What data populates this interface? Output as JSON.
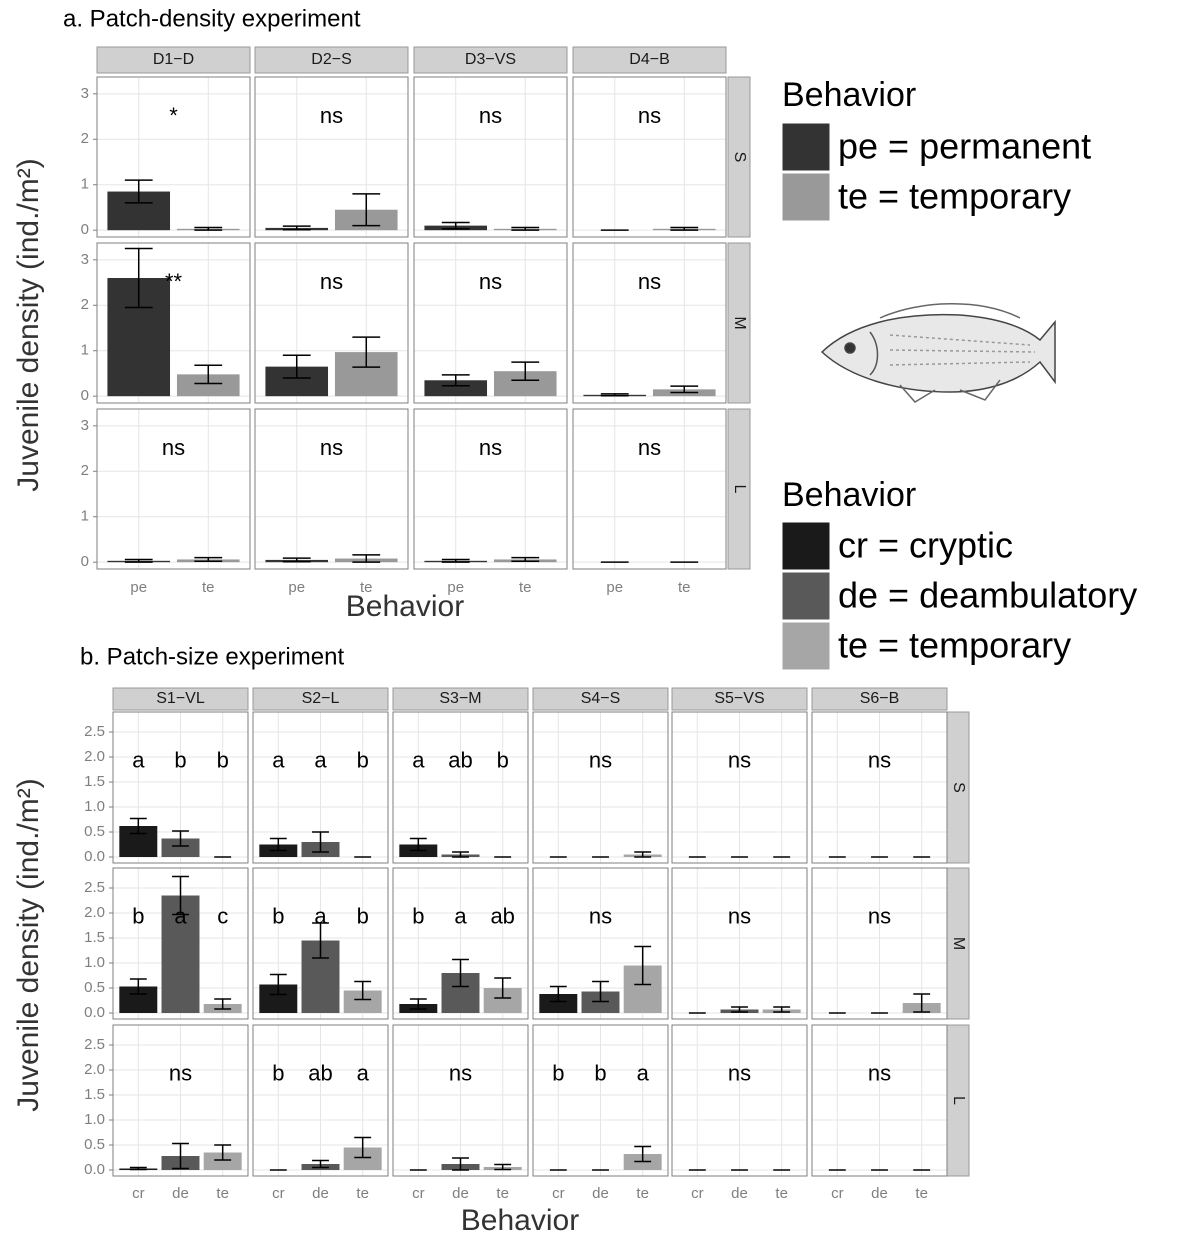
{
  "chart_data": [
    {
      "type": "bar",
      "title": "a. Patch-density experiment",
      "x_label": "Behavior",
      "y_label": "Juvenile density (ind./m²)",
      "columns": [
        "D1−D",
        "D2−S",
        "D3−VS",
        "D4−B"
      ],
      "rows": [
        "S",
        "M",
        "L"
      ],
      "categories": [
        "pe",
        "te"
      ],
      "legend_title": "Behavior",
      "series": [
        {
          "name": "pe = permanent",
          "color": "#333333"
        },
        {
          "name": "te = temporary",
          "color": "#999999"
        }
      ],
      "ylim": [
        -0.15,
        3.37
      ],
      "yticks": [
        0,
        1,
        2,
        3
      ],
      "grid": true,
      "panels": [
        [
          {
            "values": [
              0.85,
              0.03
            ],
            "errors": [
              0.25,
              0.03
            ],
            "labels": [
              "*"
            ]
          },
          {
            "values": [
              0.05,
              0.45
            ],
            "errors": [
              0.04,
              0.35
            ],
            "labels": [
              "ns"
            ]
          },
          {
            "values": [
              0.1,
              0.03
            ],
            "errors": [
              0.07,
              0.03
            ],
            "labels": [
              "ns"
            ]
          },
          {
            "values": [
              0,
              0.03
            ],
            "errors": [
              0,
              0.03
            ],
            "labels": [
              "ns"
            ]
          }
        ],
        [
          {
            "values": [
              2.6,
              0.48
            ],
            "errors": [
              0.65,
              0.2
            ],
            "labels": [
              "**"
            ]
          },
          {
            "values": [
              0.65,
              0.97
            ],
            "errors": [
              0.25,
              0.33
            ],
            "labels": [
              "ns"
            ]
          },
          {
            "values": [
              0.35,
              0.55
            ],
            "errors": [
              0.12,
              0.2
            ],
            "labels": [
              "ns"
            ]
          },
          {
            "values": [
              0.03,
              0.15
            ],
            "errors": [
              0.02,
              0.07
            ],
            "labels": [
              "ns"
            ]
          }
        ],
        [
          {
            "values": [
              0.03,
              0.06
            ],
            "errors": [
              0.03,
              0.04
            ],
            "labels": [
              "ns"
            ]
          },
          {
            "values": [
              0.05,
              0.08
            ],
            "errors": [
              0.04,
              0.08
            ],
            "labels": [
              "ns"
            ]
          },
          {
            "values": [
              0.03,
              0.06
            ],
            "errors": [
              0.03,
              0.04
            ],
            "labels": [
              "ns"
            ]
          },
          {
            "values": [
              0,
              0
            ],
            "errors": [
              0,
              0
            ],
            "labels": [
              "ns"
            ]
          }
        ]
      ]
    },
    {
      "type": "bar",
      "title": "b. Patch-size experiment",
      "x_label": "Behavior",
      "y_label": "Juvenile density (ind./m²)",
      "columns": [
        "S1−VL",
        "S2−L",
        "S3−M",
        "S4−S",
        "S5−VS",
        "S6−B"
      ],
      "rows": [
        "S",
        "M",
        "L"
      ],
      "categories": [
        "cr",
        "de",
        "te"
      ],
      "legend_title": "Behavior",
      "series": [
        {
          "name": "cr = cryptic",
          "color": "#1a1a1a"
        },
        {
          "name": "de = deambulatory",
          "color": "#595959"
        },
        {
          "name": "te = temporary",
          "color": "#a6a6a6"
        }
      ],
      "ylim": [
        -0.12,
        2.9
      ],
      "yticks": [
        {
          "value": 0,
          "label": "0.0"
        },
        0.5,
        {
          "value": 1,
          "label": "1.0"
        },
        1.5,
        {
          "value": 2,
          "label": "2.0"
        },
        2.5
      ],
      "grid": true,
      "panels": [
        [
          {
            "values": [
              0.62,
              0.37,
              0
            ],
            "errors": [
              0.15,
              0.15,
              0
            ],
            "labels": [
              "a",
              "b",
              "b"
            ]
          },
          {
            "values": [
              0.25,
              0.3,
              0
            ],
            "errors": [
              0.12,
              0.2,
              0
            ],
            "labels": [
              "a",
              "a",
              "b"
            ]
          },
          {
            "values": [
              0.25,
              0.05,
              0
            ],
            "errors": [
              0.12,
              0.05,
              0
            ],
            "labels": [
              "a",
              "ab",
              "b"
            ]
          },
          {
            "values": [
              0,
              0,
              0.05
            ],
            "errors": [
              0,
              0,
              0.05
            ],
            "labels": [
              "ns"
            ]
          },
          {
            "values": [
              0,
              0,
              0
            ],
            "errors": [
              0,
              0,
              0
            ],
            "labels": [
              "ns"
            ]
          },
          {
            "values": [
              0,
              0,
              0
            ],
            "errors": [
              0,
              0,
              0
            ],
            "labels": [
              "ns"
            ]
          }
        ],
        [
          {
            "values": [
              0.53,
              2.35,
              0.18
            ],
            "errors": [
              0.15,
              0.38,
              0.1
            ],
            "labels": [
              "b",
              "a",
              "c"
            ]
          },
          {
            "values": [
              0.57,
              1.45,
              0.45
            ],
            "errors": [
              0.2,
              0.35,
              0.18
            ],
            "labels": [
              "b",
              "a",
              "b"
            ]
          },
          {
            "values": [
              0.18,
              0.8,
              0.5
            ],
            "errors": [
              0.1,
              0.27,
              0.2
            ],
            "labels": [
              "b",
              "a",
              "ab"
            ]
          },
          {
            "values": [
              0.38,
              0.43,
              0.95
            ],
            "errors": [
              0.15,
              0.2,
              0.38
            ],
            "labels": [
              "ns"
            ]
          },
          {
            "values": [
              0,
              0.07,
              0.07
            ],
            "errors": [
              0,
              0.05,
              0.05
            ],
            "labels": [
              "ns"
            ]
          },
          {
            "values": [
              0,
              0,
              0.2
            ],
            "errors": [
              0,
              0,
              0.18
            ],
            "labels": [
              "ns"
            ]
          }
        ],
        [
          {
            "values": [
              0.03,
              0.28,
              0.35
            ],
            "errors": [
              0.02,
              0.25,
              0.15
            ],
            "labels": [
              "ns"
            ]
          },
          {
            "values": [
              0,
              0.12,
              0.45
            ],
            "errors": [
              0,
              0.07,
              0.2
            ],
            "labels": [
              "b",
              "ab",
              "a"
            ]
          },
          {
            "values": [
              0,
              0.12,
              0.06
            ],
            "errors": [
              0,
              0.12,
              0.05
            ],
            "labels": [
              "ns"
            ]
          },
          {
            "values": [
              0,
              0,
              0.32
            ],
            "errors": [
              0,
              0,
              0.15
            ],
            "labels": [
              "b",
              "b",
              "a"
            ]
          },
          {
            "values": [
              0,
              0,
              0
            ],
            "errors": [
              0,
              0,
              0
            ],
            "labels": [
              "ns"
            ]
          },
          {
            "values": [
              0,
              0,
              0
            ],
            "errors": [
              0,
              0,
              0
            ],
            "labels": [
              "ns"
            ]
          }
        ]
      ]
    }
  ]
}
